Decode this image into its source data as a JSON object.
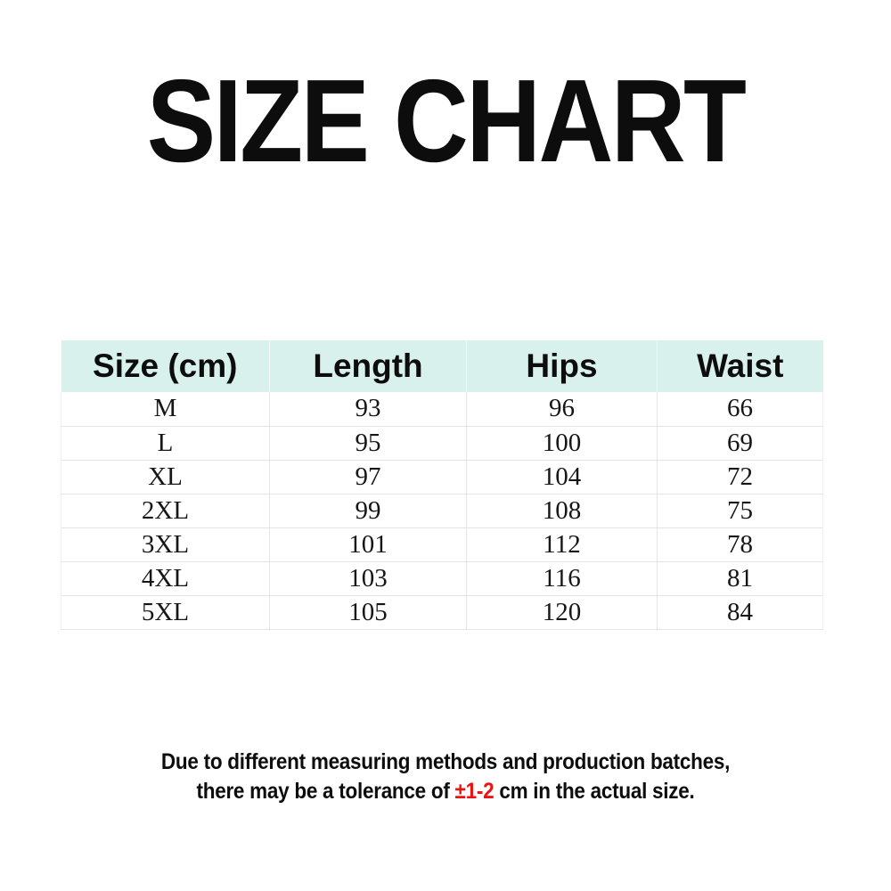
{
  "title": "SIZE CHART",
  "chart_data": {
    "type": "table",
    "title": "SIZE CHART",
    "columns": [
      "Size (cm)",
      "Length",
      "Hips",
      "Waist"
    ],
    "rows": [
      [
        "M",
        "93",
        "96",
        "66"
      ],
      [
        "L",
        "95",
        "100",
        "69"
      ],
      [
        "XL",
        "97",
        "104",
        "72"
      ],
      [
        "2XL",
        "99",
        "108",
        "75"
      ],
      [
        "3XL",
        "101",
        "112",
        "78"
      ],
      [
        "4XL",
        "103",
        "116",
        "81"
      ],
      [
        "5XL",
        "105",
        "120",
        "84"
      ]
    ],
    "layout_hints": {
      "header_background": "#d8f1ec",
      "row_divider_color": "#e4e4e4",
      "values_unit": "cm"
    }
  },
  "note": {
    "line1": "Due to different measuring methods and production batches,",
    "line2_before": "there may be a tolerance of ",
    "line2_highlight": "±1-2",
    "line2_after": " cm in the actual size."
  },
  "colors": {
    "header_bg": "#d8f1ec",
    "border": "#e4e4e4",
    "text": "#0d0d0d",
    "highlight": "#ee1111"
  }
}
